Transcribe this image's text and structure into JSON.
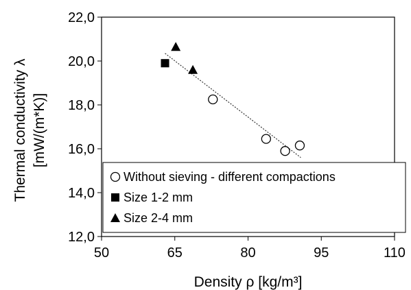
{
  "chart_data": {
    "type": "scatter",
    "xlabel": "Density ρ [kg/m³]",
    "ylabel_line1": "Thermal conductivity λ",
    "ylabel_line2": "[mW/(m*K)]",
    "xlim": [
      50,
      110
    ],
    "ylim": [
      12,
      22
    ],
    "x_ticks": [
      50,
      65,
      80,
      95,
      110
    ],
    "x_tick_labels": [
      "50",
      "65",
      "80",
      "95",
      "110"
    ],
    "y_ticks": [
      12,
      14,
      16,
      18,
      20,
      22
    ],
    "y_tick_labels": [
      "12,0",
      "14,0",
      "16,0",
      "18,0",
      "20,0",
      "22,0"
    ],
    "grid": false,
    "legend_position": "bottom-left",
    "series": [
      {
        "name": "Without sieving - different compactions",
        "marker": "open-circle",
        "points": [
          {
            "x": 72.8,
            "y": 18.25
          },
          {
            "x": 83.7,
            "y": 16.45
          },
          {
            "x": 87.6,
            "y": 15.9
          },
          {
            "x": 90.6,
            "y": 16.15
          }
        ]
      },
      {
        "name": "Size 1-2 mm",
        "marker": "filled-square",
        "points": [
          {
            "x": 63.0,
            "y": 19.9
          }
        ]
      },
      {
        "name": "Size 2-4 mm",
        "marker": "filled-triangle",
        "points": [
          {
            "x": 65.2,
            "y": 20.65
          },
          {
            "x": 68.7,
            "y": 19.6
          }
        ]
      }
    ],
    "trendline": {
      "style": "dotted",
      "x": [
        63.0,
        90.8
      ],
      "y": [
        20.35,
        15.6
      ]
    }
  }
}
